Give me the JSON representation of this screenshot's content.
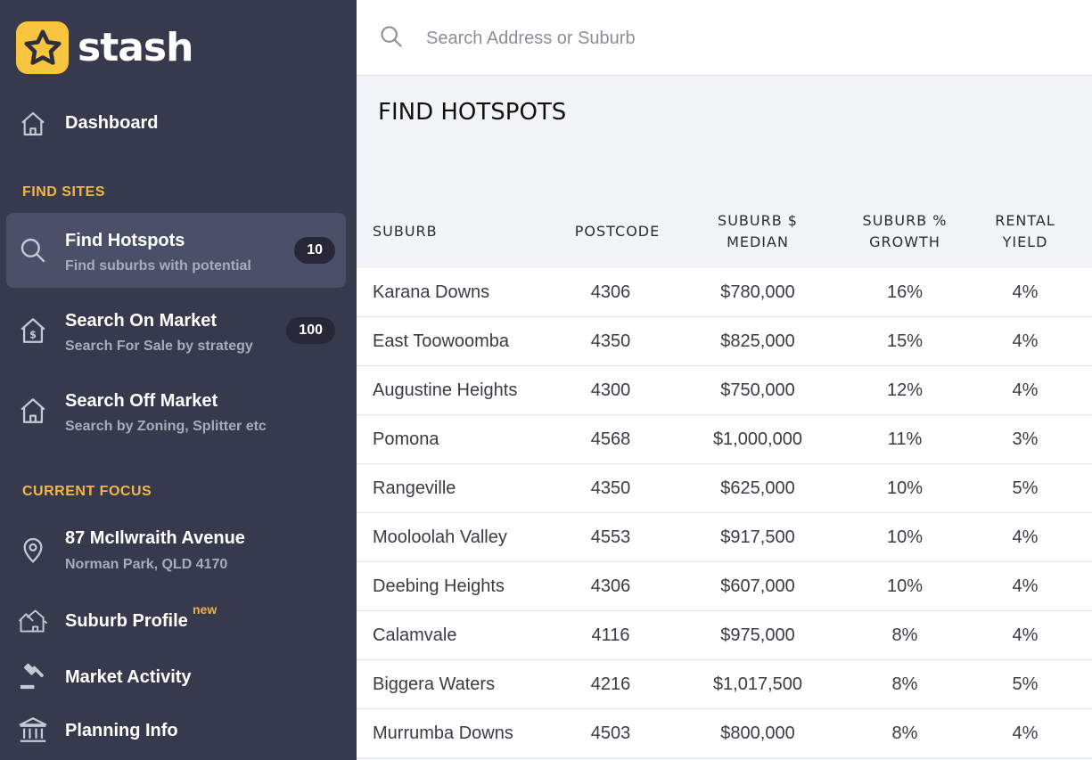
{
  "app": {
    "name": "stash",
    "accent": "#f9c53e"
  },
  "sidebar": {
    "dashboard": {
      "label": "Dashboard",
      "icon": "home-icon"
    },
    "find_sites_label": "FIND SITES",
    "find_sites": [
      {
        "title": "Find Hotspots",
        "subtitle": "Find suburbs with potential",
        "badge": "10",
        "icon": "search-icon",
        "active": true
      },
      {
        "title": "Search On Market",
        "subtitle": "Search For Sale by strategy",
        "badge": "100",
        "icon": "house-dollar-icon"
      },
      {
        "title": "Search Off Market",
        "subtitle": "Search by Zoning, Splitter etc",
        "icon": "home-icon"
      }
    ],
    "current_focus_label": "CURRENT FOCUS",
    "focus": {
      "title": "87 McIlwraith Avenue",
      "subtitle": "Norman Park, QLD 4170",
      "icon": "location-pin-icon"
    },
    "focus_items": [
      {
        "label": "Suburb Profile",
        "tag": "new",
        "icon": "houses-icon"
      },
      {
        "label": "Market Activity",
        "icon": "gavel-icon"
      },
      {
        "label": "Planning Info",
        "icon": "building-columns-icon"
      }
    ]
  },
  "search": {
    "placeholder": "Search Address or Suburb"
  },
  "main": {
    "title": "FIND HOTSPOTS",
    "columns": {
      "suburb": "SUBURB",
      "postcode": "POSTCODE",
      "median_1": "SUBURB $",
      "median_2": "MEDIAN",
      "growth_1": "SUBURB %",
      "growth_2": "GROWTH",
      "yield_1": "RENTAL",
      "yield_2": "YIELD"
    },
    "rows": [
      {
        "suburb": "Karana Downs",
        "postcode": "4306",
        "median": "$780,000",
        "growth": "16%",
        "yield": "4%"
      },
      {
        "suburb": "East Toowoomba",
        "postcode": "4350",
        "median": "$825,000",
        "growth": "15%",
        "yield": "4%"
      },
      {
        "suburb": "Augustine Heights",
        "postcode": "4300",
        "median": "$750,000",
        "growth": "12%",
        "yield": "4%"
      },
      {
        "suburb": "Pomona",
        "postcode": "4568",
        "median": "$1,000,000",
        "growth": "11%",
        "yield": "3%"
      },
      {
        "suburb": "Rangeville",
        "postcode": "4350",
        "median": "$625,000",
        "growth": "10%",
        "yield": "5%"
      },
      {
        "suburb": "Mooloolah Valley",
        "postcode": "4553",
        "median": "$917,500",
        "growth": "10%",
        "yield": "4%"
      },
      {
        "suburb": "Deebing Heights",
        "postcode": "4306",
        "median": "$607,000",
        "growth": "10%",
        "yield": "4%"
      },
      {
        "suburb": "Calamvale",
        "postcode": "4116",
        "median": "$975,000",
        "growth": "8%",
        "yield": "4%"
      },
      {
        "suburb": "Biggera Waters",
        "postcode": "4216",
        "median": "$1,017,500",
        "growth": "8%",
        "yield": "5%"
      },
      {
        "suburb": "Murrumba Downs",
        "postcode": "4503",
        "median": "$800,000",
        "growth": "8%",
        "yield": "4%"
      }
    ]
  }
}
